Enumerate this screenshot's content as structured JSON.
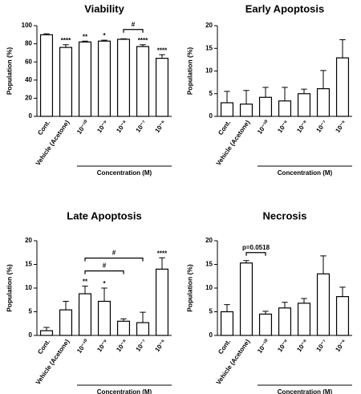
{
  "chart_data": [
    {
      "type": "bar",
      "title": "Viability",
      "ylabel": "Population (%)",
      "categories": [
        "Cont.",
        "Vehicle (Acetone)",
        "10⁻¹⁰",
        "10⁻⁹",
        "10⁻⁸",
        "10⁻⁷",
        "10⁻⁶"
      ],
      "values": [
        90,
        76,
        82,
        83,
        85,
        77,
        64
      ],
      "errors": [
        1,
        3,
        1,
        1,
        0.5,
        2,
        4
      ],
      "significance": [
        null,
        "****",
        "**",
        "*",
        null,
        "****",
        "****"
      ],
      "brackets": [
        {
          "from": 4,
          "to": 5,
          "label": "#"
        }
      ],
      "group": {
        "from": 2,
        "to": 6,
        "label": "Concentration (M)"
      },
      "ylim": [
        0,
        100
      ],
      "yticks": [
        0,
        20,
        40,
        60,
        80,
        100
      ],
      "color": "#ffffff"
    },
    {
      "type": "bar",
      "title": "Early Apoptosis",
      "ylabel": "Population (%)",
      "categories": [
        "Cont.",
        "Vehicle (Acetone)",
        "10⁻¹⁰",
        "10⁻⁹",
        "10⁻⁸",
        "10⁻⁷",
        "10⁻⁶"
      ],
      "values": [
        3.0,
        2.7,
        4.2,
        3.4,
        5.0,
        6.1,
        12.9
      ],
      "errors": [
        2.5,
        3.0,
        2.2,
        3.0,
        1.0,
        4.0,
        4.0
      ],
      "significance": [
        null,
        null,
        null,
        null,
        null,
        null,
        null
      ],
      "brackets": [],
      "group": {
        "from": 2,
        "to": 6,
        "label": "Concentration (M)"
      },
      "ylim": [
        0,
        20
      ],
      "yticks": [
        0,
        5,
        10,
        15,
        20
      ],
      "color": "#ffffff"
    },
    {
      "type": "bar",
      "title": "Late Apoptosis",
      "ylabel": "Population (%)",
      "categories": [
        "Cont.",
        "Vehicle (Acetone)",
        "10⁻¹⁰",
        "10⁻⁹",
        "10⁻⁸",
        "10⁻⁷",
        "10⁻⁶"
      ],
      "values": [
        1.0,
        5.4,
        8.8,
        7.2,
        3.0,
        2.7,
        14.0
      ],
      "errors": [
        0.7,
        1.8,
        1.6,
        2.8,
        0.5,
        2.2,
        2.4
      ],
      "significance": [
        null,
        null,
        "**",
        "*",
        null,
        null,
        "****"
      ],
      "brackets": [
        {
          "from": 2,
          "to": 4,
          "label": "#"
        },
        {
          "from": 2,
          "to": 5,
          "label": "#"
        }
      ],
      "group": {
        "from": 2,
        "to": 6,
        "label": "Concentration (M)"
      },
      "ylim": [
        0,
        20
      ],
      "yticks": [
        0,
        5,
        10,
        15,
        20
      ],
      "color": "#ffffff"
    },
    {
      "type": "bar",
      "title": "Necrosis",
      "ylabel": "Population (%)",
      "categories": [
        "Cont.",
        "Vehicle (Acetone)",
        "10⁻¹⁰",
        "10⁻⁹",
        "10⁻⁸",
        "10⁻⁷",
        "10⁻⁶"
      ],
      "values": [
        5.0,
        15.3,
        4.5,
        5.8,
        6.8,
        13.0,
        8.2
      ],
      "errors": [
        1.5,
        0.5,
        0.6,
        1.2,
        1.0,
        3.8,
        2.0
      ],
      "significance": [
        null,
        null,
        null,
        null,
        null,
        null,
        null
      ],
      "brackets": [
        {
          "from": 1,
          "to": 2,
          "label": "p=0.0518"
        }
      ],
      "group": {
        "from": 2,
        "to": 6,
        "label": "Concentration (M)"
      },
      "ylim": [
        0,
        20
      ],
      "yticks": [
        0,
        5,
        10,
        15,
        20
      ],
      "color": "#ffffff"
    }
  ]
}
